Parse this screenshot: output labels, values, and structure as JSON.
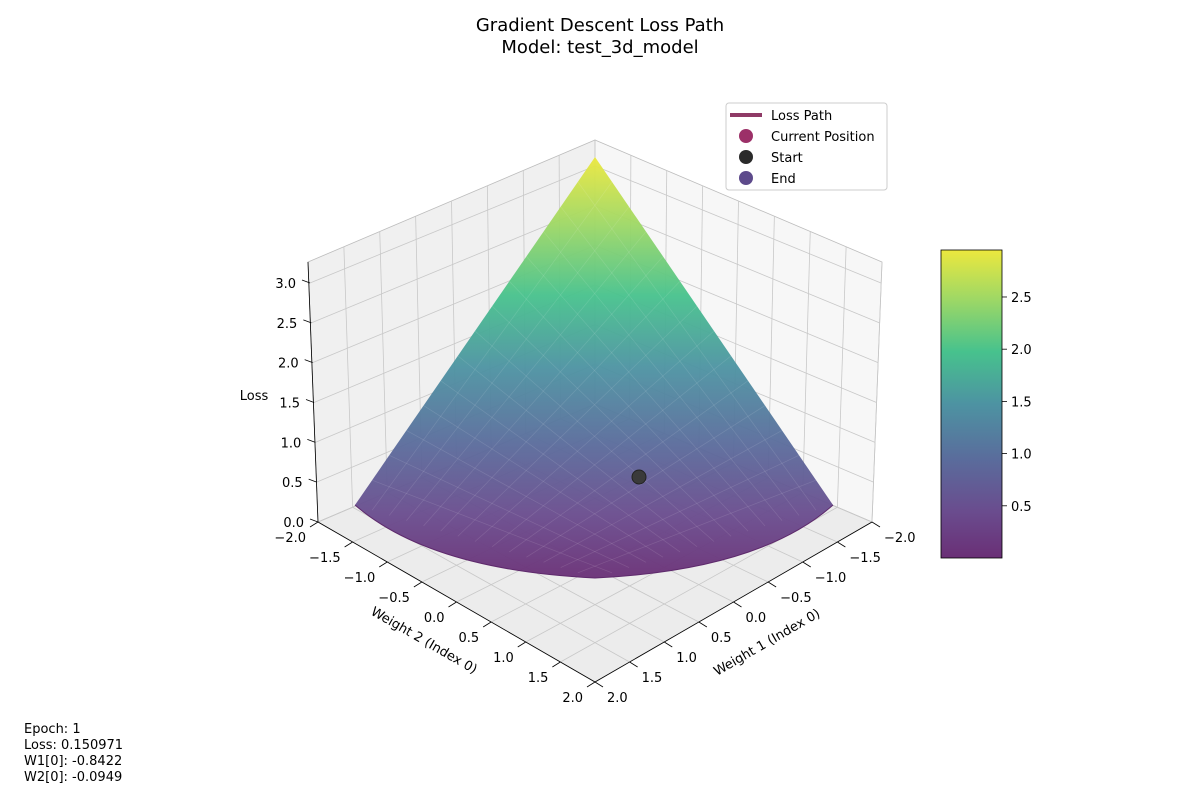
{
  "chart_data": {
    "type": "surface3d",
    "title": "Gradient Descent Loss Path",
    "subtitle": "Model: test_3d_model",
    "xlabel": "Weight 1 (Index 0)",
    "ylabel": "Weight 2 (Index 0)",
    "zlabel": "Loss",
    "xlim": [
      -2.0,
      2.0
    ],
    "ylim": [
      -2.0,
      2.0
    ],
    "zlim": [
      0.0,
      3.0
    ],
    "x_ticks": [
      "−2.0",
      "−1.5",
      "−1.0",
      "−0.5",
      "0.0",
      "0.5",
      "1.0",
      "1.5",
      "2.0"
    ],
    "y_ticks": [
      "−2.0",
      "−1.5",
      "−1.0",
      "−0.5",
      "0.0",
      "0.5",
      "1.0",
      "1.5",
      "2.0"
    ],
    "z_ticks": [
      "0.0",
      "0.5",
      "1.0",
      "1.5",
      "2.0",
      "2.5",
      "3.0"
    ],
    "colorbar": {
      "colormap": "viridis",
      "range": [
        0.0,
        2.95
      ],
      "ticks": [
        "0.5",
        "1.0",
        "1.5",
        "2.0",
        "2.5"
      ],
      "tick_values": [
        0.5,
        1.0,
        1.5,
        2.0,
        2.5
      ]
    },
    "legend": {
      "placement": "top-right",
      "entries": [
        {
          "label": "Loss Path",
          "marker": "line",
          "color": "#8f3a66"
        },
        {
          "label": "Current Position",
          "marker": "dot",
          "color": "#9c3068"
        },
        {
          "label": "Start",
          "marker": "dot",
          "color": "#2a2a2a"
        },
        {
          "label": "End",
          "marker": "dot",
          "color": "#5d4a8b"
        }
      ]
    },
    "points": {
      "current": {
        "w1": -0.8422,
        "w2": -0.0949,
        "loss": 0.150971
      }
    }
  },
  "info": {
    "epoch": "Epoch: 1",
    "loss": "Loss: 0.150971",
    "w1": "W1[0]: -0.8422",
    "w2": "W2[0]: -0.0949"
  }
}
